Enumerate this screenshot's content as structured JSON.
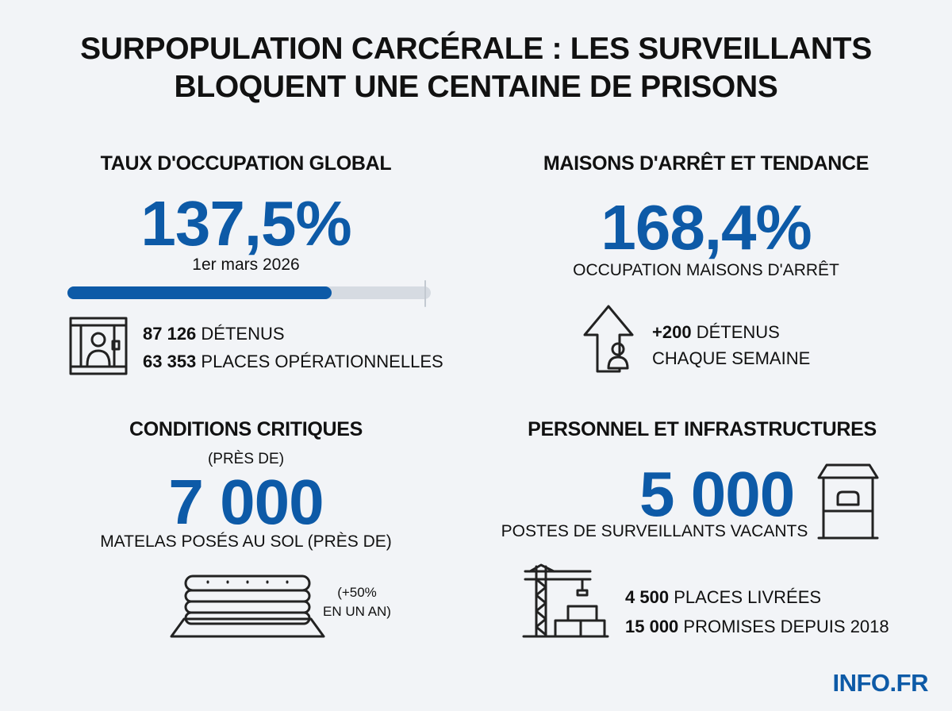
{
  "header": {
    "title_lines": [
      "SURPOPULATION CARCÉRALE : LES SURVEILLANTS",
      "BLOQUENT UNE CENTAINE DE PRISONS"
    ]
  },
  "occupation": {
    "heading": "TAUX D'OCCUPATION GLOBAL",
    "value": "137,5%",
    "date": "1er mars 2026",
    "stats": [
      {
        "number": "87 126",
        "label": "DÉTENUS"
      },
      {
        "number": "63 353",
        "label": "PLACES OPÉRATIONNELLES"
      }
    ]
  },
  "maisons": {
    "heading": "MAISONS D'ARRÊT ET TENDANCE",
    "value": "168,4%",
    "caption": "OCCUPATION MAISONS D'ARRÊT",
    "trend": {
      "number": "+200",
      "label": "DÉTENUS",
      "line2": "CHAQUE SEMAINE"
    }
  },
  "conditions": {
    "heading": "CONDITIONS CRITIQUES",
    "prefix": "(PRÈS DE)",
    "value": "7 000",
    "caption": "MATELAS POSÉS AU SOL (PRÈS DE)",
    "note_lines": [
      "(+50%",
      "EN UN AN)"
    ]
  },
  "personnel": {
    "heading": "PERSONNEL ET INFRASTRUCTURES",
    "value": "5 000",
    "caption": "POSTES DE SURVEILLANTS VACANTS",
    "stats": [
      {
        "number": "4 500",
        "label": "PLACES LIVRÉES"
      },
      {
        "number": "15 000",
        "label": "PROMISES DEPUIS 2018"
      }
    ]
  },
  "footer": {
    "brand": "INFO.FR"
  }
}
